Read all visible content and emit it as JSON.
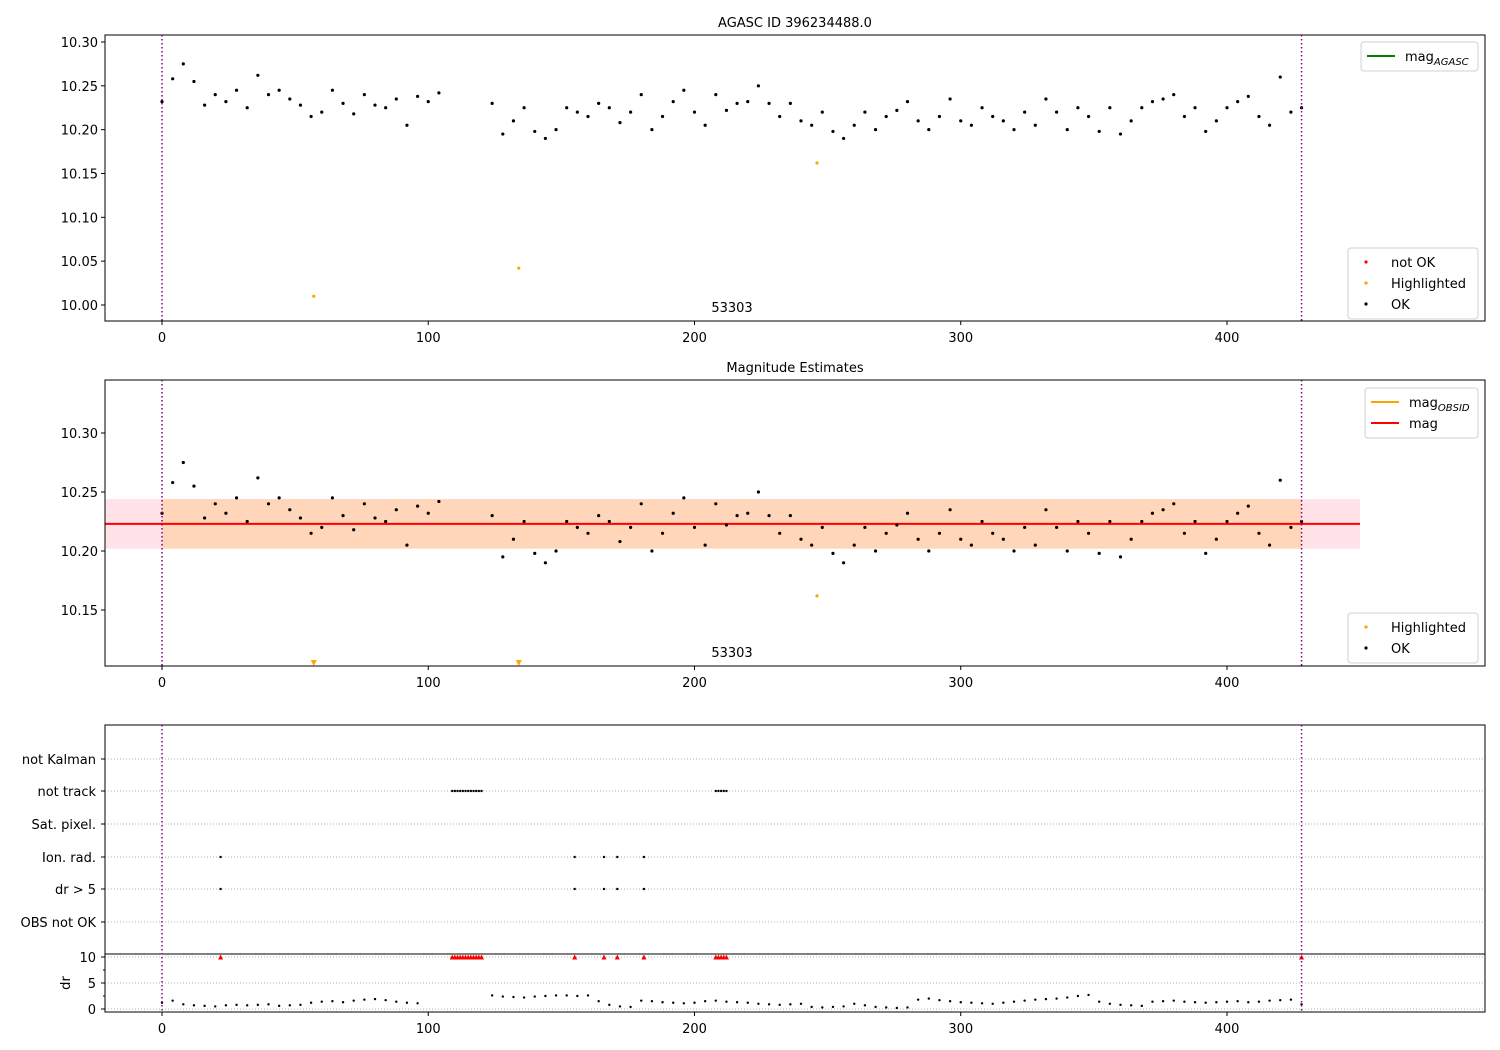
{
  "chart_data": [
    {
      "type": "scatter",
      "title": "AGASC ID 396234488.0",
      "xlim": [
        -21,
        499
      ],
      "ylim": [
        9.982,
        10.308
      ],
      "xticks": [
        0,
        100,
        200,
        300,
        400
      ],
      "yticks": [
        10.0,
        10.05,
        10.1,
        10.15,
        10.2,
        10.25,
        10.3
      ],
      "ytick_labels": [
        "10.00",
        "10.05",
        "10.10",
        "10.15",
        "10.20",
        "10.25",
        "10.30"
      ],
      "annotation": "53303",
      "obsid_bounds": [
        0,
        428
      ],
      "legend_lines": [
        {
          "label": "mag",
          "sub": "AGASC",
          "color": "#008000"
        }
      ],
      "legend_points": [
        {
          "label": "not OK",
          "color": "#ff0000"
        },
        {
          "label": "Highlighted",
          "color": "#ffa500"
        },
        {
          "label": "OK",
          "color": "#000000"
        }
      ],
      "highlighted": [
        [
          57,
          10.01
        ],
        [
          134,
          10.042
        ],
        [
          246,
          10.162
        ]
      ]
    },
    {
      "type": "scatter",
      "title": "Magnitude Estimates",
      "xlim": [
        -21,
        499
      ],
      "ylim": [
        10.103,
        10.342
      ],
      "yticks": [
        10.15,
        10.2,
        10.25,
        10.3
      ],
      "ytick_labels": [
        "10.15",
        "10.20",
        "10.25",
        "10.30"
      ],
      "annotation": "53303",
      "mag": 10.223,
      "mag_band": [
        10.202,
        10.244
      ],
      "mag_obsid": 10.223,
      "legend_lines": [
        {
          "label": "mag",
          "sub": "OBSID",
          "color": "#ffa500"
        },
        {
          "label": "mag",
          "sub": "",
          "color": "#ff0000"
        }
      ],
      "legend_points": [
        {
          "label": "Highlighted",
          "color": "#ffa500"
        },
        {
          "label": "OK",
          "color": "#000000"
        }
      ],
      "highlighted": [
        [
          246,
          10.162
        ]
      ],
      "offscale_highlighted": [
        57,
        134
      ]
    },
    {
      "type": "scatter",
      "ylabel": "dr",
      "dr_yticks": [
        0,
        5,
        10
      ],
      "flag_labels": [
        "not Kalman",
        "not track",
        "Sat. pixel.",
        "Ion. rad.",
        "dr > 5",
        "OBS not OK"
      ],
      "flags": {
        "not track": [
          109,
          110,
          111,
          112,
          113,
          114,
          115,
          116,
          117,
          118,
          119,
          120,
          208,
          209,
          210,
          211,
          212
        ],
        "Ion. rad.": [
          22,
          155,
          166,
          171,
          181
        ],
        "dr > 5": [
          22,
          155,
          166,
          171,
          181
        ]
      },
      "dr_clipped": [
        22,
        109,
        110,
        111,
        112,
        113,
        114,
        115,
        116,
        117,
        118,
        119,
        120,
        155,
        166,
        171,
        181,
        208,
        209,
        210,
        211,
        212,
        428
      ]
    }
  ],
  "series": {
    "x_step": 4,
    "mag": [
      10.232,
      10.258,
      10.275,
      10.255,
      10.228,
      10.24,
      10.232,
      10.245,
      10.225,
      10.262,
      10.24,
      10.245,
      10.235,
      10.228,
      10.215,
      10.22,
      10.245,
      10.23,
      10.218,
      10.24,
      10.228,
      10.225,
      10.235,
      10.205,
      10.238,
      10.232,
      10.242,
      null,
      null,
      null,
      null,
      10.23,
      10.195,
      10.21,
      10.225,
      10.198,
      10.19,
      10.2,
      10.225,
      10.22,
      10.215,
      10.23,
      10.225,
      10.208,
      10.22,
      10.24,
      10.2,
      10.215,
      10.232,
      10.245,
      10.22,
      10.205,
      10.24,
      10.222,
      10.23,
      10.232,
      10.25,
      10.23,
      10.215,
      10.23,
      10.21,
      10.205,
      10.22,
      10.198,
      10.19,
      10.205,
      10.22,
      10.2,
      10.215,
      10.222,
      10.232,
      10.21,
      10.2,
      10.215,
      10.235,
      10.21,
      10.205,
      10.225,
      10.215,
      10.21,
      10.2,
      10.22,
      10.205,
      10.235,
      10.22,
      10.2,
      10.225,
      10.215,
      10.198,
      10.225,
      10.195,
      10.21,
      10.225,
      10.232,
      10.235,
      10.24,
      10.215,
      10.225,
      10.198,
      10.21,
      10.225,
      10.232,
      10.238,
      10.215,
      10.205,
      10.26,
      10.22,
      10.225
    ],
    "dr": [
      1.2,
      1.6,
      0.9,
      0.7,
      0.6,
      0.5,
      0.7,
      0.8,
      0.7,
      0.8,
      0.9,
      0.6,
      0.7,
      0.8,
      1.2,
      1.4,
      1.5,
      1.3,
      1.6,
      1.8,
      1.9,
      1.7,
      1.4,
      1.2,
      1.1,
      null,
      null,
      null,
      null,
      null,
      null,
      2.6,
      2.4,
      2.3,
      2.2,
      2.4,
      2.5,
      2.6,
      2.6,
      2.5,
      2.6,
      1.5,
      0.8,
      0.5,
      0.4,
      1.6,
      1.5,
      1.3,
      1.2,
      1.1,
      1.2,
      1.5,
      1.6,
      1.4,
      1.3,
      1.2,
      1.0,
      0.9,
      0.8,
      0.9,
      1.0,
      0.4,
      0.3,
      0.4,
      0.5,
      1.0,
      0.7,
      0.4,
      0.3,
      0.2,
      0.3,
      1.8,
      2.0,
      1.7,
      1.5,
      1.3,
      1.2,
      1.1,
      1.0,
      1.2,
      1.4,
      1.6,
      1.8,
      1.9,
      2.0,
      2.2,
      2.5,
      2.7,
      1.4,
      1.0,
      0.8,
      0.7,
      0.6,
      1.4,
      1.5,
      1.6,
      1.4,
      1.3,
      1.2,
      1.3,
      1.4,
      1.5,
      1.3,
      1.4,
      1.6,
      1.7,
      1.8,
      0.9
    ]
  }
}
